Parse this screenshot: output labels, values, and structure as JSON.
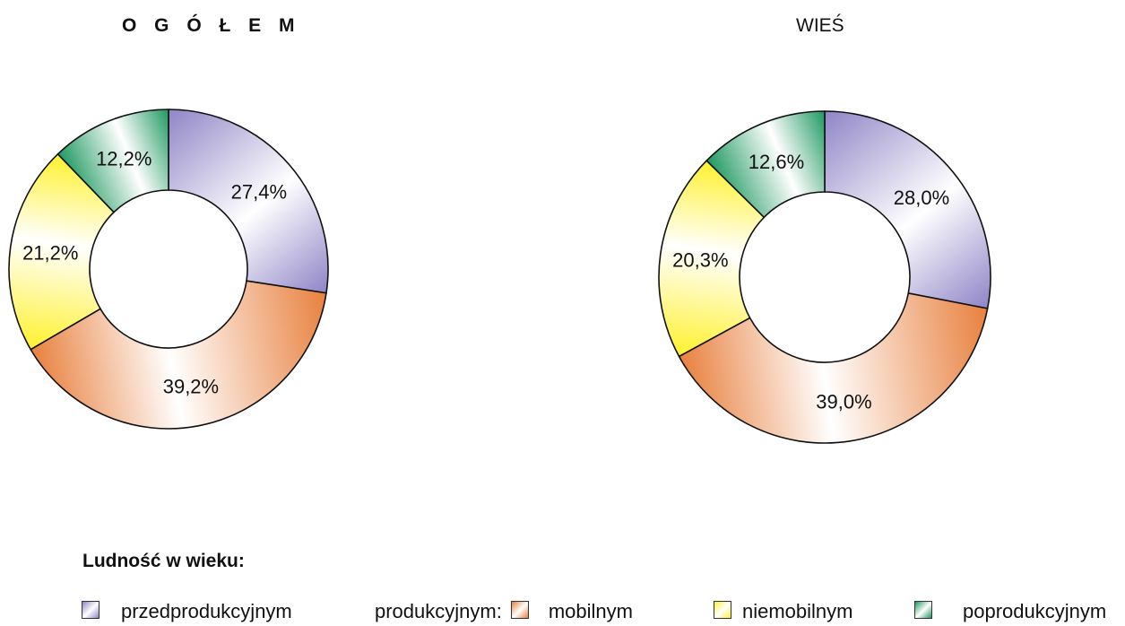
{
  "chart_data": [
    {
      "type": "pie",
      "title": "O G Ó Ł E M",
      "categories": [
        "przedprodukcyjnym",
        "mobilnym",
        "niemobilnym",
        "poprodukcyjnym"
      ],
      "values": [
        27.4,
        39.2,
        21.2,
        12.2
      ],
      "value_labels": [
        "27,4%",
        "39,2%",
        "21,2%",
        "12,2%"
      ],
      "hole": "donut"
    },
    {
      "type": "pie",
      "title": "WIEŚ",
      "categories": [
        "przedprodukcyjnym",
        "mobilnym",
        "niemobilnym",
        "poprodukcyjnym"
      ],
      "values": [
        28.0,
        39.0,
        20.3,
        12.6
      ],
      "value_labels": [
        "28,0%",
        "39,0%",
        "20,3%",
        "12,6%"
      ],
      "hole": "donut"
    }
  ],
  "colors": {
    "przedprodukcyjnym": "#8f85c7",
    "mobilnym": "#e8803e",
    "niemobilnym": "#fff12e",
    "poprodukcyjnym": "#1e9960",
    "outline": "#111111"
  },
  "legend": {
    "heading": "Ludność w wieku:",
    "group_label": "produkcyjnym:",
    "items": [
      {
        "key": "przedprodukcyjnym",
        "label": "przedprodukcyjnym"
      },
      {
        "key": "mobilnym",
        "label": "mobilnym"
      },
      {
        "key": "niemobilnym",
        "label": "niemobilnym"
      },
      {
        "key": "poprodukcyjnym",
        "label": "poprodukcyjnym"
      }
    ]
  }
}
